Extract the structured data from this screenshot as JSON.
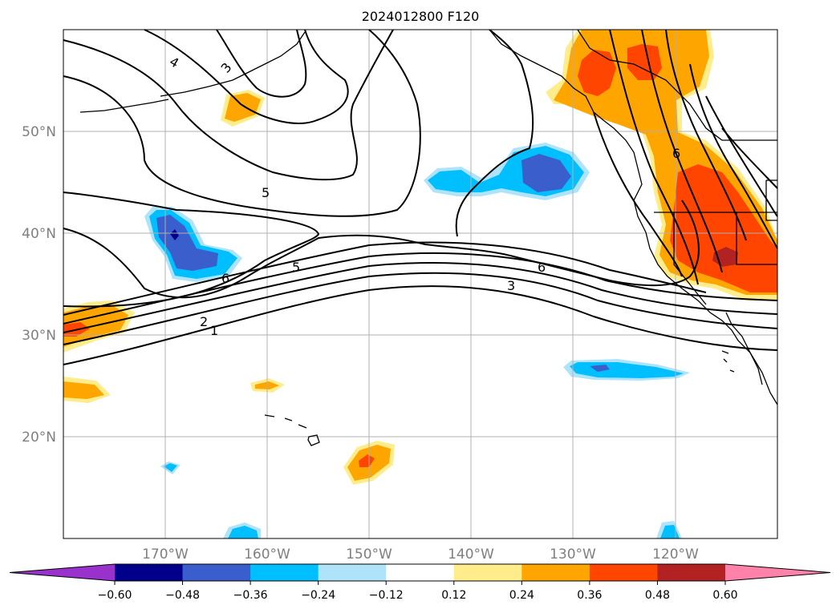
{
  "title": "2024012800 F120",
  "map": {
    "projection": "plate-carree",
    "lon_range": [
      -180,
      -110
    ],
    "lat_range": [
      10,
      60
    ],
    "lat_ticks": [
      {
        "value": 50,
        "label": "50°N"
      },
      {
        "value": 40,
        "label": "40°N"
      },
      {
        "value": 30,
        "label": "30°N"
      },
      {
        "value": 20,
        "label": "20°N"
      }
    ],
    "lon_ticks": [
      {
        "value": -170,
        "label": "170°W"
      },
      {
        "value": -160,
        "label": "160°W"
      },
      {
        "value": -150,
        "label": "150°W"
      },
      {
        "value": -140,
        "label": "140°W"
      },
      {
        "value": -130,
        "label": "130°W"
      },
      {
        "value": -120,
        "label": "120°W"
      }
    ],
    "grid": true,
    "contour_color": "#000000",
    "contour_labels": [
      "4",
      "3",
      "5",
      "6",
      "5",
      "6",
      "2",
      "1",
      "6",
      "3"
    ]
  },
  "colorbar": {
    "orientation": "horizontal",
    "extend": "both",
    "colors": [
      "#9932cc",
      "#00008b",
      "#3a5fcd",
      "#00bfff",
      "#afe3fa",
      "#ffffff",
      "#ffec8b",
      "#ffa500",
      "#ff4500",
      "#b22222",
      "#ff82ab"
    ],
    "ticks": [
      "−0.60",
      "−0.48",
      "−0.36",
      "−0.24",
      "−0.12",
      "0.12",
      "0.24",
      "0.36",
      "0.48",
      "0.60"
    ]
  }
}
